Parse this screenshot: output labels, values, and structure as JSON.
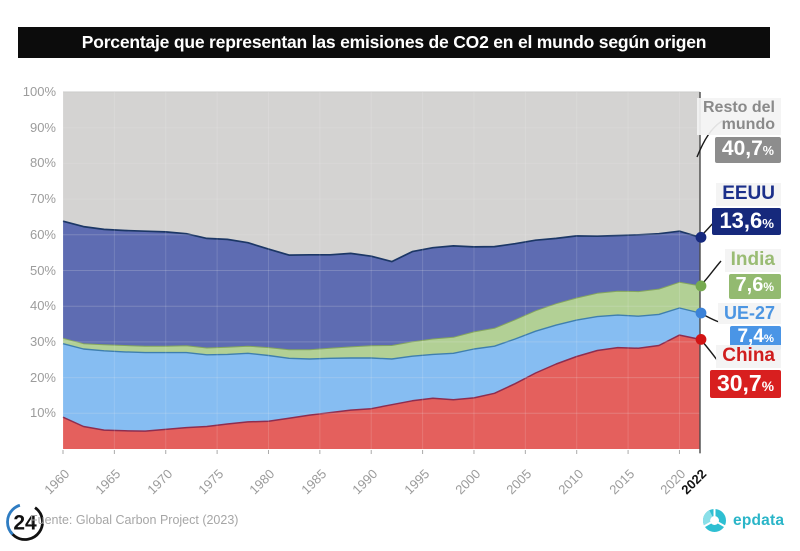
{
  "title": "Porcentaje que representan las emisiones de CO2 en el mundo según origen",
  "source": "Fuente: Global Carbon Project (2023)",
  "logo24_label": "24",
  "epdata_label": "epdata",
  "legend": [
    {
      "name": "Resto del\nmundo",
      "value": "40,7",
      "unit": "%",
      "color": "#8a8a8a",
      "badge": "#8d8d8d"
    },
    {
      "name": "EEUU",
      "value": "13,6",
      "unit": "%",
      "color": "#1b2f8a",
      "badge": "#16297c"
    },
    {
      "name": "India",
      "value": "7,6",
      "unit": "%",
      "color": "#9abc74",
      "badge": "#93ba70"
    },
    {
      "name": "UE-27",
      "value": "7,4",
      "unit": "%",
      "color": "#4d96e2",
      "badge": "#4a95e6"
    },
    {
      "name": "China",
      "value": "30,7",
      "unit": "%",
      "color": "#d01e1e",
      "badge": "#d81f1f"
    }
  ],
  "chart_data": {
    "type": "area",
    "stacked": true,
    "title": "Porcentaje que representan las emisiones de CO2 en el mundo según origen",
    "xlabel": "",
    "ylabel": "",
    "unit": "%",
    "ylim": [
      0,
      100
    ],
    "grid": true,
    "legend_position": "right",
    "x": [
      1960,
      1962,
      1964,
      1966,
      1968,
      1970,
      1972,
      1974,
      1976,
      1978,
      1980,
      1982,
      1984,
      1986,
      1988,
      1990,
      1992,
      1994,
      1996,
      1998,
      2000,
      2002,
      2004,
      2006,
      2008,
      2010,
      2012,
      2014,
      2016,
      2018,
      2020,
      2022
    ],
    "series": [
      {
        "name": "China",
        "final_label": "30,7%",
        "fill": "#e04845",
        "stroke": "#8e2d4f",
        "stroke_width": 1.5,
        "dot": "#d11414",
        "values": [
          8.9,
          6.3,
          5.3,
          5.1,
          5.0,
          5.5,
          6.0,
          6.3,
          7.0,
          7.6,
          7.8,
          8.6,
          9.5,
          10.2,
          10.9,
          11.3,
          12.4,
          13.5,
          14.2,
          13.8,
          14.3,
          15.6,
          18.3,
          21.3,
          23.8,
          25.9,
          27.6,
          28.4,
          28.2,
          29.0,
          31.9,
          30.7
        ]
      },
      {
        "name": "UE-27",
        "final_label": "7,4%",
        "fill": "#74b3f0",
        "stroke": "#3f7fae",
        "stroke_width": 1.4,
        "dot": "#3b82d8",
        "values": [
          20.6,
          21.7,
          22.2,
          22.1,
          22.0,
          21.5,
          21.0,
          20.1,
          19.5,
          19.2,
          18.4,
          16.8,
          15.7,
          15.2,
          14.6,
          14.2,
          12.8,
          12.5,
          12.3,
          13.0,
          13.7,
          13.2,
          12.5,
          11.7,
          10.9,
          10.2,
          9.5,
          9.1,
          9.0,
          8.7,
          7.6,
          7.4
        ]
      },
      {
        "name": "India",
        "final_label": "7,6%",
        "fill": "#a7c985",
        "stroke": "#84a55e",
        "stroke_width": 1.0,
        "dot": "#76aa50",
        "values": [
          1.5,
          1.5,
          1.7,
          1.8,
          1.8,
          1.8,
          1.9,
          1.9,
          2.0,
          2.0,
          2.2,
          2.4,
          2.6,
          2.8,
          3.1,
          3.4,
          3.8,
          4.0,
          4.3,
          4.5,
          4.8,
          5.0,
          5.4,
          5.7,
          6.0,
          6.2,
          6.5,
          6.7,
          6.9,
          7.1,
          7.2,
          7.6
        ]
      },
      {
        "name": "EEUU",
        "final_label": "13,6%",
        "fill": "#4656a6",
        "stroke": "#1c3766",
        "stroke_width": 1.7,
        "dot": "#16297e",
        "values": [
          32.8,
          32.8,
          32.3,
          32.2,
          32.2,
          32.0,
          31.4,
          30.7,
          30.2,
          29.0,
          27.6,
          26.5,
          26.6,
          26.2,
          26.2,
          25.1,
          23.5,
          25.3,
          25.6,
          25.6,
          23.8,
          22.9,
          21.3,
          19.8,
          18.3,
          17.4,
          16.0,
          15.6,
          15.9,
          15.5,
          14.3,
          13.6
        ]
      },
      {
        "name": "Resto del mundo",
        "final_label": "40,7%",
        "fill": "#cecdcb",
        "stroke": null,
        "stroke_width": 0,
        "dot": null,
        "values": [
          36.2,
          37.7,
          38.5,
          38.8,
          39.0,
          39.2,
          39.7,
          41.0,
          41.3,
          42.2,
          44.0,
          45.7,
          45.6,
          45.6,
          45.2,
          46.0,
          47.5,
          44.7,
          43.6,
          43.1,
          43.4,
          43.3,
          42.5,
          41.5,
          41.0,
          40.3,
          40.4,
          40.2,
          40.0,
          39.7,
          39.0,
          40.7
        ]
      }
    ],
    "y_ticks": [
      {
        "label": "100%",
        "value": 100
      },
      {
        "label": "90%",
        "value": 90
      },
      {
        "label": "80%",
        "value": 80
      },
      {
        "label": "70%",
        "value": 70
      },
      {
        "label": "60%",
        "value": 60
      },
      {
        "label": "50%",
        "value": 50
      },
      {
        "label": "40%",
        "value": 40
      },
      {
        "label": "30%",
        "value": 30
      },
      {
        "label": "20%",
        "value": 20
      },
      {
        "label": "10%",
        "value": 10
      }
    ],
    "x_ticks": [
      {
        "label": "1960",
        "year": 1960
      },
      {
        "label": "1965",
        "year": 1965
      },
      {
        "label": "1970",
        "year": 1970
      },
      {
        "label": "1975",
        "year": 1975
      },
      {
        "label": "1980",
        "year": 1980
      },
      {
        "label": "1985",
        "year": 1985
      },
      {
        "label": "1990",
        "year": 1990
      },
      {
        "label": "1995",
        "year": 1995
      },
      {
        "label": "2000",
        "year": 2000
      },
      {
        "label": "2005",
        "year": 2005
      },
      {
        "label": "2010",
        "year": 2010
      },
      {
        "label": "2015",
        "year": 2015
      },
      {
        "label": "2020",
        "year": 2020
      },
      {
        "label": "2022",
        "year": 2022,
        "emphasis": true
      }
    ]
  }
}
